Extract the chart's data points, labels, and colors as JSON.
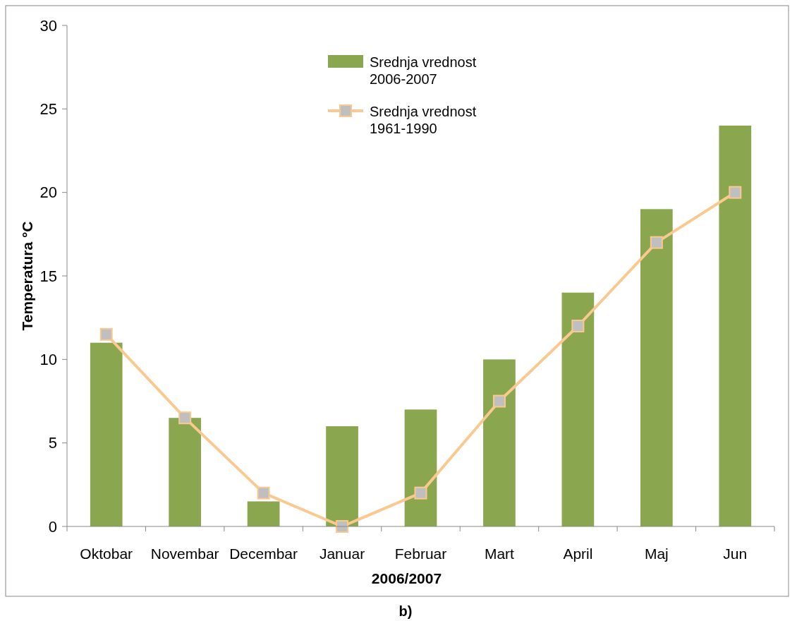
{
  "chart_data": {
    "type": "bar",
    "xlabel": "2006/2007",
    "ylabel": "Temperatura °C",
    "categories": [
      "Oktobar",
      "Novembar",
      "Decembar",
      "Januar",
      "Februar",
      "Mart",
      "April",
      "Maj",
      "Jun"
    ],
    "series": [
      {
        "name": "Srednja vrednost 2006-2007",
        "color": "#8aa64e",
        "values": [
          11,
          6.5,
          1.5,
          6,
          7,
          10,
          14,
          19,
          24
        ]
      },
      {
        "name": "Srednja vrednost 1961-1990",
        "type": "line",
        "color": "#fac990",
        "values": [
          11.5,
          6.5,
          2,
          0,
          2,
          7.5,
          12,
          17,
          20
        ]
      }
    ],
    "ylim": [
      0,
      30
    ],
    "yticks": [
      0,
      5,
      10,
      15,
      20,
      25,
      30
    ],
    "grid": false,
    "legend": "top",
    "marker": "square",
    "line_style": "solid",
    "annotations": [
      "b)"
    ]
  }
}
